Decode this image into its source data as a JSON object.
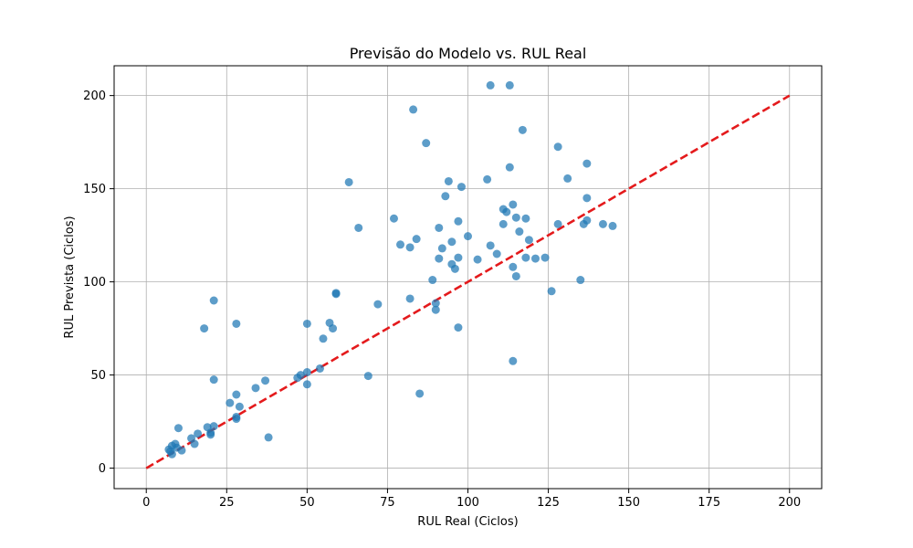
{
  "chart_data": {
    "type": "scatter",
    "title": "Previsão do Modelo vs. RUL Real",
    "xlabel": "RUL Real (Ciclos)",
    "ylabel": "RUL Prevista (Ciclos)",
    "xlim": [
      -10,
      210
    ],
    "ylim": [
      -11,
      216
    ],
    "xticks": [
      0,
      25,
      50,
      75,
      100,
      125,
      150,
      175,
      200
    ],
    "yticks": [
      0,
      50,
      100,
      150,
      200
    ],
    "grid": true,
    "point_color": "#1f77b4",
    "reference_line": {
      "x": [
        0,
        200
      ],
      "y": [
        0,
        200
      ],
      "color": "#e41a1c",
      "style": "dashed"
    },
    "points": [
      [
        7,
        10
      ],
      [
        7.5,
        9
      ],
      [
        8,
        12
      ],
      [
        8,
        7.5
      ],
      [
        9,
        13
      ],
      [
        9.5,
        11
      ],
      [
        10,
        21.5
      ],
      [
        11,
        9.5
      ],
      [
        14,
        16
      ],
      [
        15,
        13
      ],
      [
        16,
        18.5
      ],
      [
        19,
        22
      ],
      [
        20,
        19
      ],
      [
        20,
        18
      ],
      [
        21,
        22.5
      ],
      [
        21,
        47.5
      ],
      [
        18,
        75
      ],
      [
        21,
        90
      ],
      [
        26,
        35
      ],
      [
        28,
        27.5
      ],
      [
        28,
        26.5
      ],
      [
        28,
        39.5
      ],
      [
        29,
        33
      ],
      [
        28,
        77.5
      ],
      [
        34,
        43
      ],
      [
        37,
        47
      ],
      [
        38,
        16.5
      ],
      [
        47,
        48.5
      ],
      [
        48,
        50
      ],
      [
        50,
        51.5
      ],
      [
        50,
        45
      ],
      [
        50,
        77.5
      ],
      [
        54,
        53.5
      ],
      [
        55,
        69.5
      ],
      [
        57,
        78
      ],
      [
        58,
        75
      ],
      [
        59,
        94
      ],
      [
        59,
        93.5
      ],
      [
        63,
        153.5
      ],
      [
        66,
        129
      ],
      [
        69,
        49.5
      ],
      [
        72,
        88
      ],
      [
        77,
        134
      ],
      [
        79,
        120
      ],
      [
        82,
        118.5
      ],
      [
        82,
        91
      ],
      [
        83,
        192.5
      ],
      [
        84,
        123
      ],
      [
        85,
        40
      ],
      [
        87,
        174.5
      ],
      [
        89,
        101
      ],
      [
        90,
        88.5
      ],
      [
        90,
        85
      ],
      [
        91,
        129
      ],
      [
        91,
        112.5
      ],
      [
        92,
        118
      ],
      [
        93,
        146
      ],
      [
        94,
        154
      ],
      [
        95,
        121.5
      ],
      [
        95,
        109.5
      ],
      [
        96,
        107
      ],
      [
        97,
        132.5
      ],
      [
        97,
        113
      ],
      [
        97,
        75.5
      ],
      [
        98,
        151
      ],
      [
        100,
        124.5
      ],
      [
        103,
        112
      ],
      [
        106,
        155
      ],
      [
        107,
        119.5
      ],
      [
        107,
        205.5
      ],
      [
        109,
        115
      ],
      [
        111,
        139
      ],
      [
        111,
        131
      ],
      [
        112,
        137.5
      ],
      [
        113,
        205.5
      ],
      [
        113,
        161.5
      ],
      [
        114,
        141.5
      ],
      [
        114,
        108
      ],
      [
        114,
        57.5
      ],
      [
        115,
        134.5
      ],
      [
        115,
        103
      ],
      [
        116,
        127
      ],
      [
        117,
        181.5
      ],
      [
        118,
        134
      ],
      [
        118,
        113
      ],
      [
        119,
        122.5
      ],
      [
        121,
        112.5
      ],
      [
        124,
        113
      ],
      [
        126,
        95
      ],
      [
        128,
        172.5
      ],
      [
        128,
        131
      ],
      [
        131,
        155.5
      ],
      [
        135,
        101
      ],
      [
        136,
        131
      ],
      [
        137,
        163.5
      ],
      [
        137,
        145
      ],
      [
        137,
        133
      ],
      [
        142,
        131
      ],
      [
        145,
        130
      ]
    ]
  }
}
